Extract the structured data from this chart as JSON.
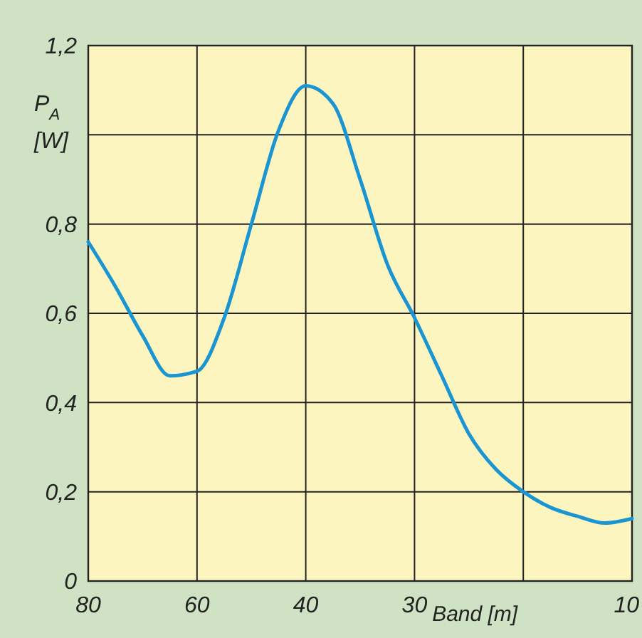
{
  "chart_data": {
    "type": "line",
    "xlabel": "Band [m]",
    "ylabel": "P$_{A}$ [W]",
    "categories": [
      "80",
      null,
      null,
      null,
      "60",
      null,
      null,
      null,
      "40",
      null,
      null,
      null,
      "30",
      null,
      null,
      null,
      null,
      null,
      null,
      null,
      "10"
    ],
    "series": [
      {
        "color": "#1a95d2",
        "values": [
          0.76,
          0.66,
          0.55,
          0.46,
          0.47,
          0.59,
          0.8,
          1.01,
          1.11,
          1.07,
          0.9,
          0.71,
          0.59,
          0.46,
          0.33,
          0.25,
          0.2,
          0.165,
          0.145,
          0.13,
          0.14
        ]
      }
    ],
    "ylim": [
      0,
      1.2
    ],
    "yticks": [
      {
        "value": 0,
        "label": "0"
      },
      {
        "value": 0.2,
        "label": "0,2"
      },
      {
        "value": 0.4,
        "label": "0,4"
      },
      {
        "value": 0.6,
        "label": "0,6"
      },
      {
        "value": 0.8,
        "label": "0,8"
      },
      {
        "value": 1,
        "label": null
      },
      {
        "value": 1.2,
        "label": "1,2"
      }
    ],
    "grid": true,
    "marker": "none",
    "line_style": "solid"
  }
}
